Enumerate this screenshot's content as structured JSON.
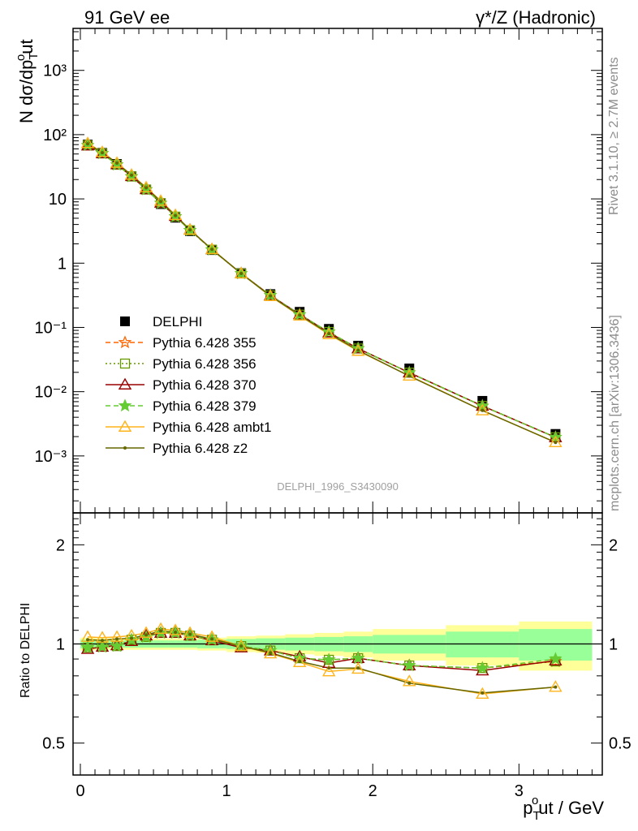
{
  "header": {
    "left_label": "91 GeV ee",
    "right_label": "γ*/Z (Hadronic)"
  },
  "side_labels": {
    "rivet": "Rivet 3.1.10, ≥ 2.7M events",
    "mcplots": "mcplots.cern.ch [arXiv:1306.3436]"
  },
  "analysis_id": "DELPHI_1996_S3430090",
  "colors": {
    "data": "#000000",
    "band_inner": "#99ff99",
    "band_outer": "#ffff99",
    "s355": "#ff6600",
    "s356": "#669900",
    "s370": "#990000",
    "s379": "#66cc33",
    "ambt1": "#ffb31a",
    "z2": "#666600"
  },
  "chart_data": [
    {
      "type": "scatter",
      "panel": "main",
      "ylabel": "N dσ/dp",
      "ylabel_sup": "o",
      "ylabel_sub": "T",
      "ylabel_end": "ut",
      "yscale": "log",
      "ylim": [
        0.00013,
        4500
      ],
      "xlim": [
        -0.05,
        3.57
      ],
      "ytick_labels": [
        "10⁻³",
        "10⁻²",
        "10⁻¹",
        "1",
        "10",
        "10²",
        "10³"
      ],
      "x": [
        0.05,
        0.15,
        0.25,
        0.35,
        0.45,
        0.55,
        0.65,
        0.75,
        0.9,
        1.1,
        1.3,
        1.5,
        1.7,
        1.9,
        2.25,
        2.75,
        3.25
      ],
      "series": [
        {
          "name": "DELPHI",
          "key": "data",
          "style": "data",
          "values": [
            70,
            52,
            35,
            22.5,
            14,
            8.3,
            5.1,
            3.15,
            1.6,
            0.7,
            0.33,
            0.175,
            0.095,
            0.052,
            0.023,
            0.0072,
            0.0022
          ]
        },
        {
          "name": "Pythia 6.428 355",
          "key": "s355",
          "style": "star-dashed",
          "values": [
            68,
            51,
            34,
            22.3,
            14,
            8.6,
            5.3,
            3.25,
            1.62,
            0.69,
            0.315,
            0.158,
            0.085,
            0.047,
            0.0198,
            0.006,
            0.00195
          ]
        },
        {
          "name": "Pythia 6.428 356",
          "key": "s356",
          "style": "square-dotted",
          "values": [
            68,
            51,
            34,
            22.3,
            14,
            8.6,
            5.3,
            3.25,
            1.62,
            0.69,
            0.315,
            0.158,
            0.085,
            0.047,
            0.0198,
            0.006,
            0.00195
          ]
        },
        {
          "name": "Pythia 6.428 370",
          "key": "s370",
          "style": "triangle-solid",
          "values": [
            67.5,
            51,
            34.5,
            22.5,
            14.1,
            8.7,
            5.4,
            3.3,
            1.64,
            0.69,
            0.315,
            0.16,
            0.083,
            0.047,
            0.0198,
            0.006,
            0.00195
          ]
        },
        {
          "name": "Pythia 6.428 379",
          "key": "s379",
          "style": "star-dashed",
          "values": [
            68,
            51,
            34,
            22.3,
            14,
            8.6,
            5.3,
            3.25,
            1.62,
            0.69,
            0.315,
            0.158,
            0.085,
            0.047,
            0.0198,
            0.006,
            0.00195
          ]
        },
        {
          "name": "Pythia 6.428 ambt1",
          "key": "ambt1",
          "style": "triangle-solid",
          "values": [
            73.5,
            53.5,
            36.3,
            23.7,
            15.1,
            9.3,
            5.6,
            3.3,
            1.65,
            0.69,
            0.306,
            0.152,
            0.078,
            0.043,
            0.0177,
            0.0051,
            0.00163
          ]
        },
        {
          "name": "Pythia 6.428 z2",
          "key": "z2",
          "style": "dot-solid",
          "values": [
            72,
            52.5,
            36,
            23.4,
            14.9,
            9.1,
            5.5,
            3.3,
            1.64,
            0.69,
            0.309,
            0.155,
            0.08,
            0.044,
            0.0175,
            0.0051,
            0.00162
          ]
        }
      ]
    },
    {
      "type": "scatter",
      "panel": "ratio",
      "ylabel": "Ratio to DELPHI",
      "yscale": "log",
      "ylim": [
        0.4,
        2.5
      ],
      "xlim": [
        -0.05,
        3.57
      ],
      "ytick_labels": [
        "0.5",
        "1",
        "2"
      ],
      "xtick_labels": [
        "0",
        "1",
        "2",
        "3"
      ],
      "xlabel": "p",
      "xlabel_sup": "o",
      "xlabel_sub": "T",
      "xlabel_end": "ut / GeV",
      "bins": [
        [
          0,
          0.1
        ],
        [
          0.1,
          0.2
        ],
        [
          0.2,
          0.3
        ],
        [
          0.3,
          0.4
        ],
        [
          0.4,
          0.5
        ],
        [
          0.5,
          0.6
        ],
        [
          0.6,
          0.7
        ],
        [
          0.7,
          0.8
        ],
        [
          0.8,
          1.0
        ],
        [
          1.0,
          1.2
        ],
        [
          1.2,
          1.4
        ],
        [
          1.4,
          1.6
        ],
        [
          1.6,
          1.8
        ],
        [
          1.8,
          2.0
        ],
        [
          2.0,
          2.5
        ],
        [
          2.5,
          3.0
        ],
        [
          3.0,
          3.5
        ]
      ],
      "band_inner": [
        0.03,
        0.025,
        0.025,
        0.025,
        0.025,
        0.025,
        0.025,
        0.025,
        0.03,
        0.035,
        0.04,
        0.045,
        0.05,
        0.055,
        0.065,
        0.09,
        0.11
      ],
      "band_outer": [
        0.045,
        0.04,
        0.04,
        0.04,
        0.04,
        0.04,
        0.04,
        0.04,
        0.045,
        0.055,
        0.06,
        0.07,
        0.08,
        0.09,
        0.11,
        0.14,
        0.17
      ],
      "x": [
        0.05,
        0.15,
        0.25,
        0.35,
        0.45,
        0.55,
        0.65,
        0.75,
        0.9,
        1.1,
        1.3,
        1.5,
        1.7,
        1.9,
        2.25,
        2.75,
        3.25
      ],
      "series": [
        {
          "name": "Pythia 6.428 355",
          "key": "s355",
          "style": "star-dashed",
          "values": [
            0.975,
            0.98,
            0.985,
            1.03,
            1.05,
            1.08,
            1.08,
            1.06,
            1.03,
            0.985,
            0.955,
            0.905,
            0.895,
            0.905,
            0.86,
            0.845,
            0.885
          ]
        },
        {
          "name": "Pythia 6.428 356",
          "key": "s356",
          "style": "square-dotted",
          "values": [
            0.975,
            0.98,
            0.985,
            1.03,
            1.05,
            1.08,
            1.08,
            1.06,
            1.03,
            0.985,
            0.955,
            0.905,
            0.895,
            0.905,
            0.86,
            0.845,
            0.885
          ]
        },
        {
          "name": "Pythia 6.428 370",
          "key": "s370",
          "style": "triangle-solid",
          "values": [
            0.965,
            0.98,
            0.99,
            1.02,
            1.06,
            1.08,
            1.08,
            1.06,
            1.025,
            0.975,
            0.955,
            0.915,
            0.875,
            0.905,
            0.86,
            0.83,
            0.89
          ]
        },
        {
          "name": "Pythia 6.428 379",
          "key": "s379",
          "style": "star-dashed",
          "values": [
            0.975,
            0.98,
            0.985,
            1.03,
            1.05,
            1.08,
            1.08,
            1.06,
            1.03,
            0.985,
            0.955,
            0.905,
            0.895,
            0.905,
            0.86,
            0.845,
            0.9
          ]
        },
        {
          "name": "Pythia 6.428 ambt1",
          "key": "ambt1",
          "style": "triangle-solid",
          "values": [
            1.05,
            1.045,
            1.05,
            1.06,
            1.08,
            1.11,
            1.1,
            1.08,
            1.05,
            0.985,
            0.935,
            0.88,
            0.825,
            0.84,
            0.77,
            0.705,
            0.74
          ]
        },
        {
          "name": "Pythia 6.428 z2",
          "key": "z2",
          "style": "dot-solid",
          "values": [
            1.03,
            1.025,
            1.035,
            1.04,
            1.065,
            1.095,
            1.085,
            1.07,
            1.035,
            0.985,
            0.94,
            0.885,
            0.845,
            0.845,
            0.76,
            0.71,
            0.74
          ]
        }
      ]
    }
  ]
}
